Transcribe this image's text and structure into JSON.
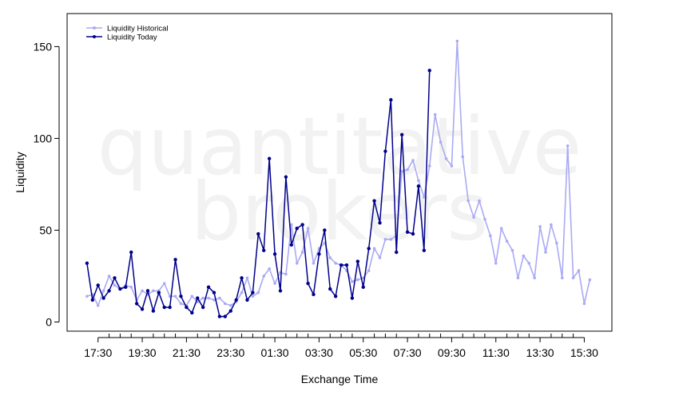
{
  "chart_data": {
    "type": "line",
    "xlabel": "Exchange Time",
    "ylabel": "Liquidity",
    "ylim": [
      -5,
      168
    ],
    "y_ticks": [
      0,
      50,
      100,
      150
    ],
    "x_tick_labels": [
      "17:30",
      "19:30",
      "21:30",
      "23:30",
      "01:30",
      "03:30",
      "05:30",
      "07:30",
      "09:30",
      "11:30",
      "13:30",
      "15:30"
    ],
    "x_tick_hours_since_1630": [
      1,
      3,
      5,
      7,
      9,
      11,
      13,
      15,
      17,
      19,
      21,
      23
    ],
    "minor_tick_step_hours": 0.5,
    "x_range_hours_since_1630": [
      -0.4,
      24.25
    ],
    "legend_position": "top-left",
    "watermark": [
      "quantitative",
      "brokers"
    ],
    "colors": {
      "historical": "#aaaaf5",
      "today": "#00008b"
    },
    "series": [
      {
        "name": "Liquidity Historical",
        "color": "#aaaaf5",
        "x_start": 0.5,
        "x_step": 0.25,
        "values": [
          14,
          15,
          9,
          17,
          25,
          20,
          18,
          20,
          19,
          12,
          17,
          15,
          17,
          17,
          21,
          14,
          14,
          10,
          9,
          14,
          11,
          13,
          13,
          12,
          13,
          10,
          9,
          11,
          16,
          24,
          14,
          16,
          25,
          29,
          21,
          27,
          26,
          53,
          32,
          38,
          51,
          32,
          40,
          43,
          35,
          32,
          31,
          28,
          22,
          23,
          24,
          28,
          40,
          35,
          45,
          45,
          47,
          82,
          83,
          88,
          77,
          68,
          85,
          113,
          98,
          89,
          85,
          153,
          90,
          66,
          57,
          66,
          56,
          47,
          32,
          51,
          44,
          39,
          24,
          36,
          32,
          24,
          52,
          38,
          53,
          43,
          24,
          96,
          24,
          28,
          10,
          23
        ]
      },
      {
        "name": "Liquidity Today",
        "color": "#00008b",
        "x_start": 0.5,
        "x_step": 0.25,
        "values": [
          32,
          12,
          20,
          13,
          17,
          24,
          18,
          19,
          38,
          10,
          7,
          17,
          6,
          16,
          8,
          8,
          34,
          14,
          8,
          5,
          13,
          8,
          19,
          16,
          3,
          3,
          6,
          12,
          24,
          12,
          16,
          48,
          39,
          89,
          37,
          17,
          79,
          42,
          51,
          53,
          21,
          15,
          37,
          50,
          18,
          14,
          31,
          31,
          13,
          33,
          19,
          40,
          66,
          54,
          93,
          121,
          38,
          102,
          49,
          48,
          74,
          39,
          137
        ]
      }
    ]
  }
}
